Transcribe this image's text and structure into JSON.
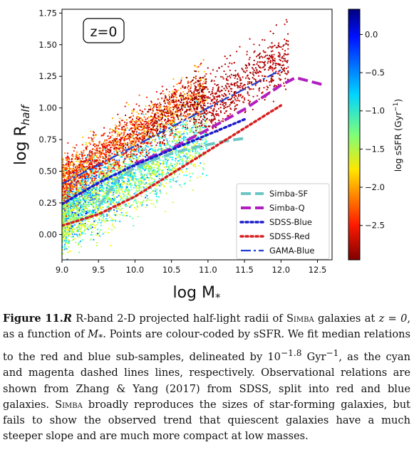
{
  "panel_label": "z=0",
  "chart_data": {
    "type": "scatter",
    "xlabel": "log M",
    "xlabel_sub": "*",
    "ylabel": "log R",
    "ylabel_sub": "half",
    "xlim": [
      9.0,
      12.7
    ],
    "ylim": [
      -0.2,
      1.78
    ],
    "xticks": [
      "9.0",
      "9.5",
      "10.0",
      "10.5",
      "11.0",
      "11.5",
      "12.0",
      "12.5"
    ],
    "yticks": [
      "0.00",
      "0.25",
      "0.50",
      "0.75",
      "1.00",
      "1.25",
      "1.50",
      "1.75"
    ],
    "colorbar": {
      "label": "log sSFR (Gyr",
      "label_sup": "−1",
      "label_close": ")",
      "range": [
        -2.95,
        0.33
      ],
      "ticks": [
        "0.0",
        "−0.5",
        "−1.0",
        "−1.5",
        "−2.0",
        "−2.5"
      ],
      "cmap": "jet_r"
    },
    "legend_position": "lower-right",
    "series": [
      {
        "name": "Simba-SF",
        "style": "dashed",
        "color": "#6cc6c6",
        "x": [
          9.5,
          9.75,
          10.0,
          10.25,
          10.5,
          10.75,
          11.0,
          11.25,
          11.5
        ],
        "y": [
          0.22,
          0.43,
          0.53,
          0.59,
          0.64,
          0.68,
          0.71,
          0.74,
          0.76
        ]
      },
      {
        "name": "Simba-Q",
        "style": "dashed",
        "color": "#b11ec0",
        "x": [
          10.0,
          10.5,
          11.0,
          11.5,
          12.0,
          12.2,
          12.6
        ],
        "y": [
          0.56,
          0.68,
          0.83,
          0.99,
          1.18,
          1.24,
          1.18
        ]
      },
      {
        "name": "SDSS-Blue",
        "style": "dotted",
        "color": "#1b1bcc",
        "x": [
          9.0,
          9.5,
          10.0,
          10.5,
          11.0,
          11.5
        ],
        "y": [
          0.24,
          0.41,
          0.55,
          0.67,
          0.79,
          0.91
        ]
      },
      {
        "name": "SDSS-Red",
        "style": "dotted",
        "color": "#d62020",
        "x": [
          9.0,
          9.5,
          10.0,
          10.5,
          11.0,
          11.5,
          12.0
        ],
        "y": [
          0.07,
          0.16,
          0.3,
          0.48,
          0.66,
          0.84,
          1.02
        ]
      },
      {
        "name": "GAMA-Blue",
        "style": "dashdot",
        "color": "#1f3fd0",
        "x": [
          9.0,
          12.0
        ],
        "y": [
          0.4,
          1.3
        ]
      }
    ]
  },
  "caption": {
    "label": "Figure 11.",
    "p1": " R-band 2-D projected half-light radii of ",
    "simba1": "Simba",
    "p2": " galaxies at ",
    "zeq": "z = 0",
    "p3": ", as a function of ",
    "mstar": "M",
    "mstar_sub": "*",
    "p4": ". Points are colour-coded by sSFR. We fit median relations to the red and blue sub-samples, delineated by ",
    "threshold_base": "10",
    "threshold_exp": "−1.8",
    "threshold_unit": " Gyr",
    "threshold_unit_exp": "−1",
    "p5": ", as the cyan and magenta dashed lines lines, respectively. Observational relations are shown from Zhang & Yang (2017) from SDSS, split into red and blue galaxies. ",
    "simba2": "Simba",
    "p6": " broadly reproduces the sizes of star-forming galaxies, but fails to show the observed trend that quiescent galaxies have a much steeper slope and are much more compact at low masses."
  }
}
